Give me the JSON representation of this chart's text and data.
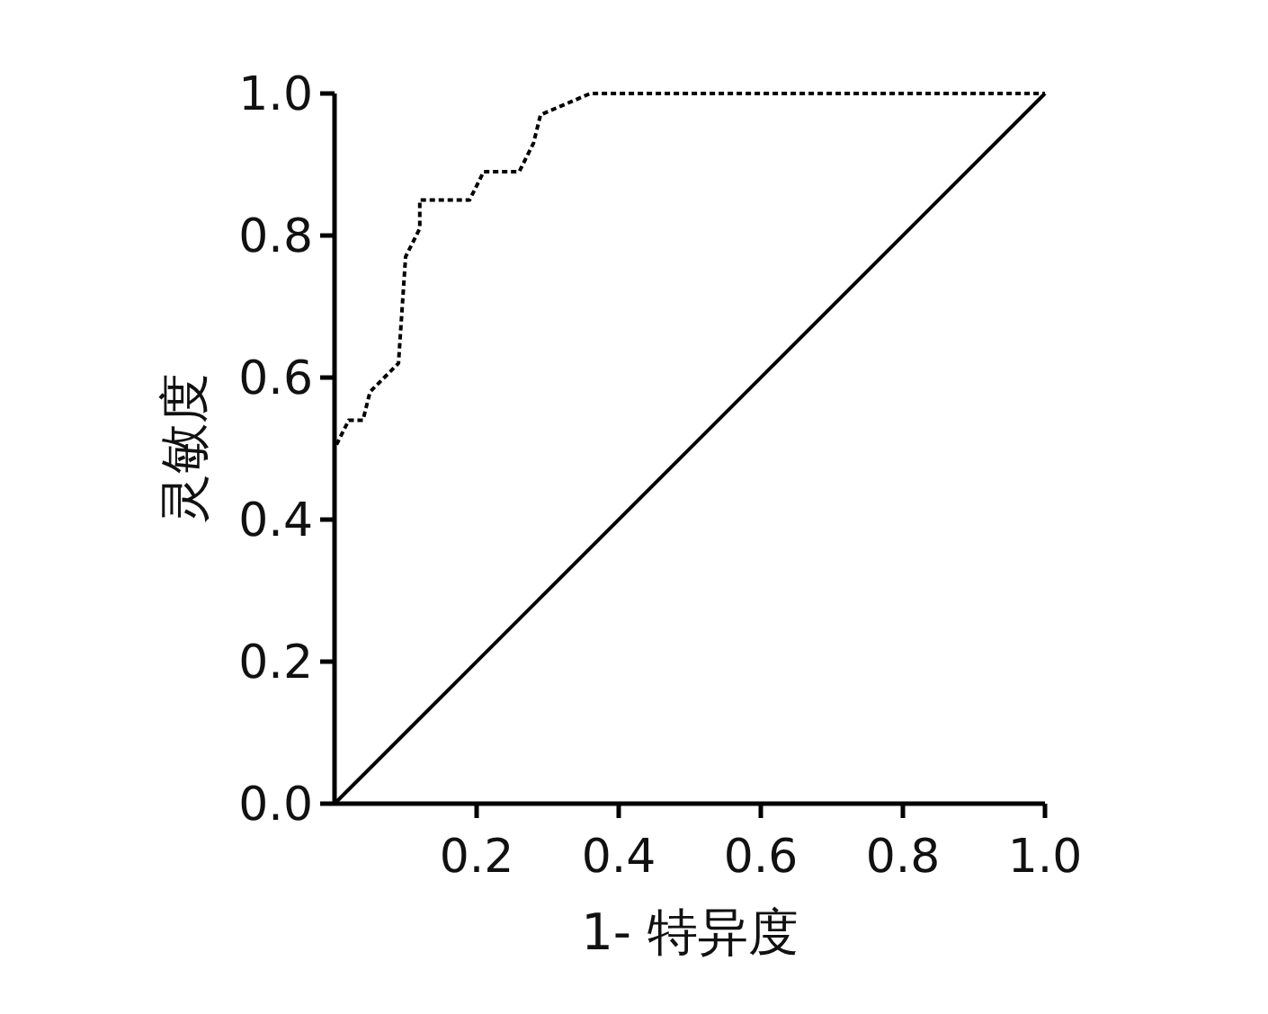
{
  "chart_data": {
    "type": "line",
    "xlabel": "1- 特异度",
    "ylabel": "灵敏度",
    "xlim": [
      0,
      1
    ],
    "ylim": [
      0,
      1
    ],
    "xticks": [
      0.2,
      0.4,
      0.6,
      0.8,
      "1.0"
    ],
    "yticks": [
      "0.0",
      0.2,
      0.4,
      0.6,
      0.8,
      "1.0"
    ],
    "grid": false,
    "marker": "none",
    "series": [
      {
        "color": "#000000",
        "line_style": "dotted",
        "x": [
          0,
          0,
          0.02,
          0.04,
          0.05,
          0.09,
          0.1,
          0.12,
          0.12,
          0.19,
          0.21,
          0.26,
          0.28,
          0.29,
          0.36,
          1
        ],
        "values": [
          0,
          0.5,
          0.54,
          0.54,
          0.58,
          0.62,
          0.77,
          0.81,
          0.85,
          0.85,
          0.89,
          0.89,
          0.93,
          0.97,
          1,
          1
        ]
      },
      {
        "color": "#000000",
        "line_style": "solid",
        "x": [
          0,
          1
        ],
        "values": [
          0,
          1
        ]
      }
    ]
  }
}
